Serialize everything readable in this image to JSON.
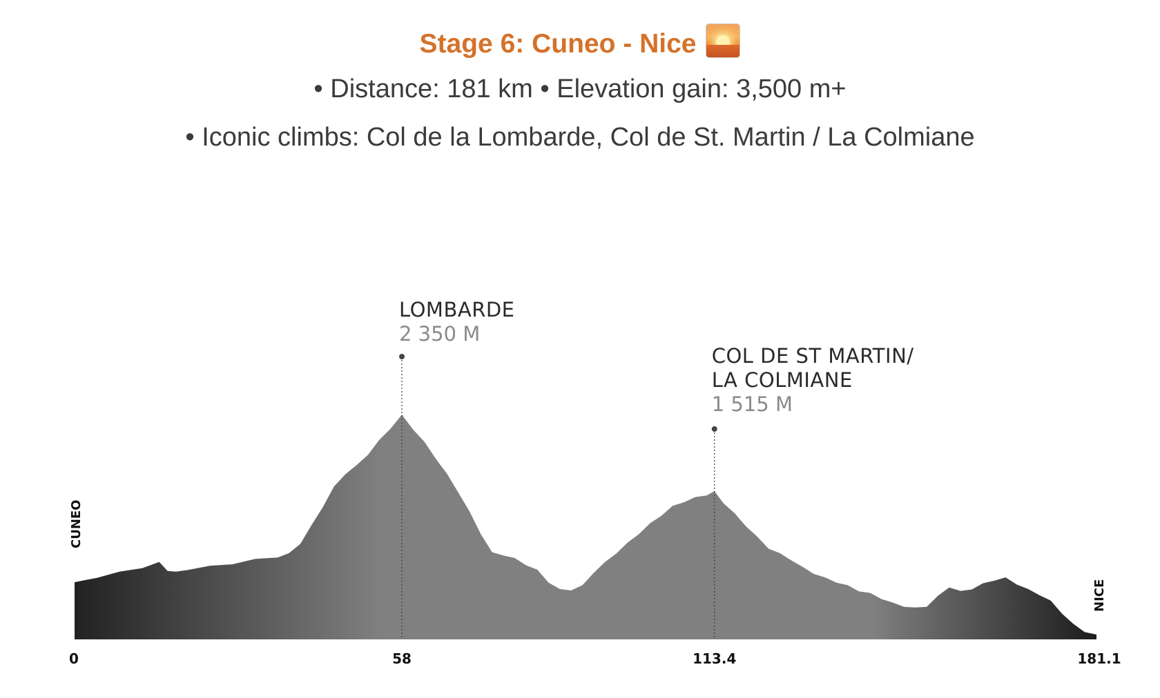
{
  "header": {
    "title": "Stage 6: Cuneo - Nice",
    "title_icon": "sunset-emoji-icon",
    "line1": "• Distance: 181 km • Elevation gain: 3,500 m+",
    "line2": "• Iconic climbs: Col de la Lombarde, Col de St. Martin / La Colmiane"
  },
  "colors": {
    "title": "#d4722a",
    "text": "#3b3b3b",
    "profile_dark": "#222222",
    "profile_mid": "#808080"
  },
  "chart_data": {
    "type": "area",
    "title": "",
    "xlabel": "",
    "ylabel": "",
    "x_unit": "km",
    "y_unit": "m",
    "xlim": [
      0,
      181.1
    ],
    "ylim": [
      0,
      2600
    ],
    "x_ticks": [
      "0",
      "58",
      "113.4",
      "181.1"
    ],
    "start_label": "CUNEO",
    "end_label": "NICE",
    "peaks": [
      {
        "name": "LOMBARDE",
        "elevation_label": "2 350 M",
        "x": 58,
        "y": 2350
      },
      {
        "name_lines": [
          "COL DE ST MARTIN/",
          "LA COLMIANE"
        ],
        "elevation_label": "1 515 M",
        "x": 113.4,
        "y": 1515
      }
    ],
    "series": [
      {
        "x": [
          0,
          4,
          8,
          12,
          15,
          16.5,
          18,
          20,
          24,
          28,
          32,
          36,
          38,
          40,
          42,
          44,
          46,
          48,
          50,
          52,
          54,
          56,
          58,
          60,
          62,
          64,
          66,
          68,
          70,
          72,
          74,
          76,
          78,
          80,
          82,
          84,
          86,
          88,
          90,
          92,
          94,
          96,
          98,
          100,
          102,
          104,
          106,
          108,
          110,
          112,
          113.4,
          115,
          117,
          119,
          121,
          123,
          125,
          127,
          129,
          131,
          133,
          135,
          137,
          139,
          141,
          143,
          145,
          147,
          149,
          151,
          153,
          155,
          157,
          159,
          161,
          163,
          165,
          167,
          169,
          171,
          173,
          175,
          177,
          179,
          181.1
        ],
        "y": [
          590,
          650,
          700,
          750,
          800,
          720,
          700,
          730,
          760,
          790,
          830,
          860,
          890,
          1000,
          1180,
          1380,
          1580,
          1720,
          1800,
          1920,
          2060,
          2190,
          2320,
          2180,
          2040,
          1880,
          1710,
          1530,
          1320,
          1100,
          900,
          880,
          840,
          780,
          720,
          600,
          520,
          520,
          560,
          700,
          800,
          900,
          1000,
          1100,
          1200,
          1290,
          1380,
          1430,
          1470,
          1500,
          1530,
          1420,
          1300,
          1180,
          1060,
          950,
          890,
          830,
          750,
          690,
          640,
          600,
          560,
          510,
          480,
          430,
          380,
          350,
          330,
          350,
          450,
          550,
          500,
          530,
          580,
          620,
          640,
          580,
          520,
          470,
          400,
          280,
          160,
          90,
          50
        ]
      }
    ]
  }
}
